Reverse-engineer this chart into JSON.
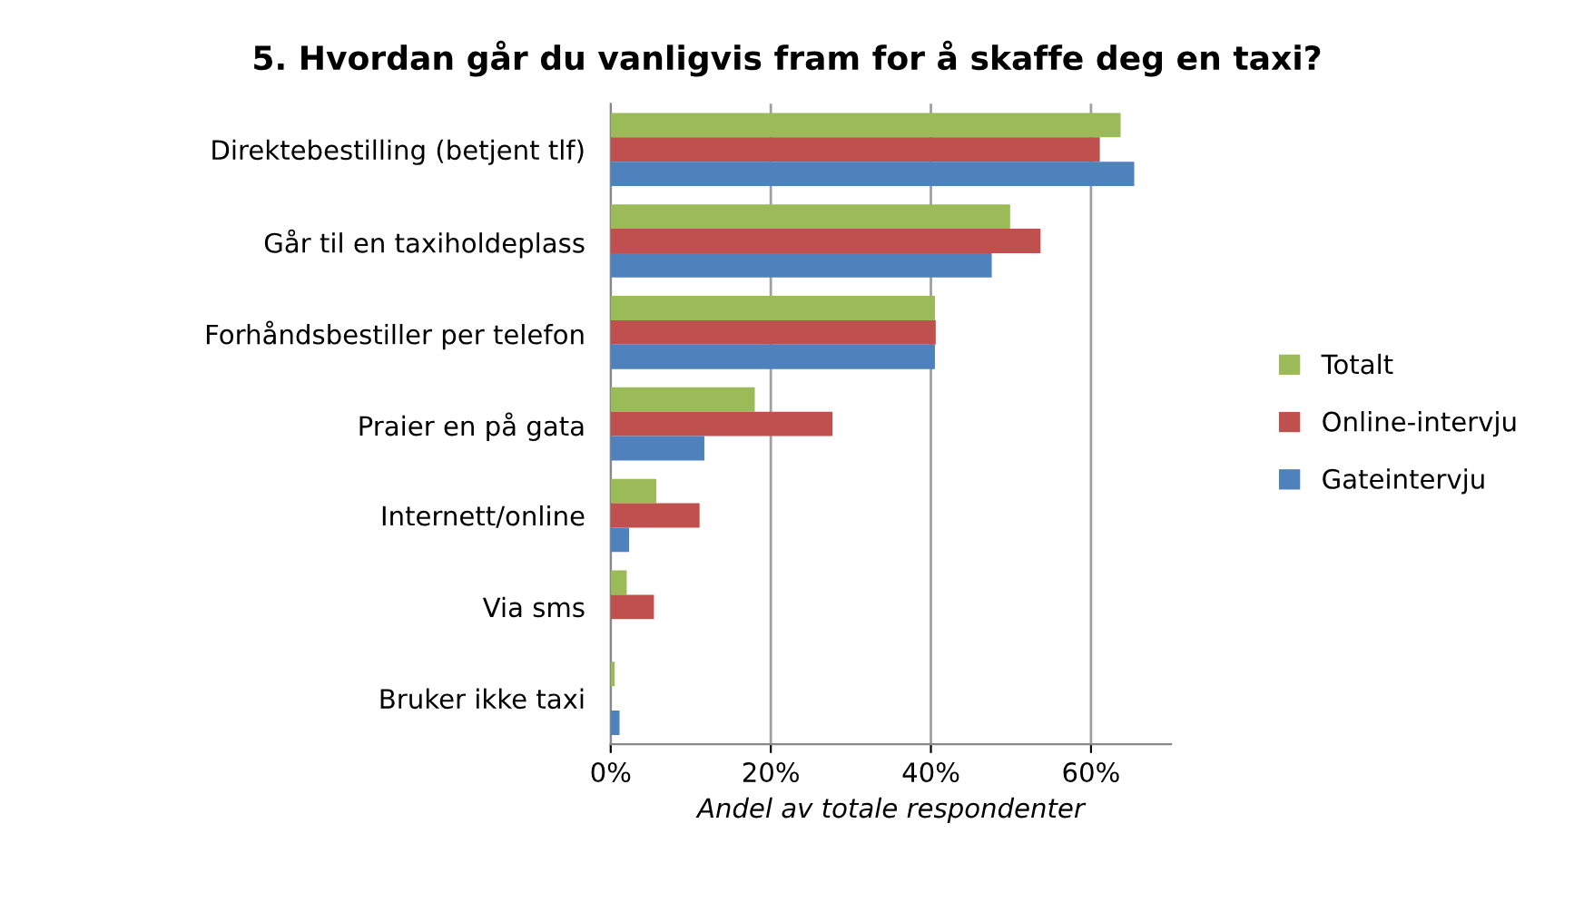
{
  "chart_data": {
    "type": "bar",
    "orientation": "horizontal",
    "title": "5. Hvordan går du vanligvis fram for å skaffe deg en taxi?",
    "xlabel": "Andel av totale respondenter",
    "categories": [
      "Direktebestilling (betjent tlf)",
      "Går til en taxiholdeplass",
      "Forhåndsbestiller per telefon",
      "Praier en på gata",
      "Internett/online",
      "Via sms",
      "Bruker ikke taxi"
    ],
    "series": [
      {
        "name": "Totalt",
        "color": "#9bbb59",
        "values": [
          63.7,
          49.9,
          40.5,
          18.0,
          5.7,
          2.0,
          0.5
        ]
      },
      {
        "name": "Online-intervju",
        "color": "#c0504d",
        "values": [
          61.1,
          53.7,
          40.6,
          27.7,
          11.1,
          5.4,
          0
        ]
      },
      {
        "name": "Gateintervju",
        "color": "#4f81bd",
        "values": [
          65.4,
          47.6,
          40.5,
          11.7,
          2.3,
          0,
          1.1
        ]
      }
    ],
    "xlim": [
      0,
      70
    ],
    "xticks": [
      {
        "value": 0,
        "label": "0%"
      },
      {
        "value": 20,
        "label": "20%"
      },
      {
        "value": 40,
        "label": "40%"
      },
      {
        "value": 60,
        "label": "60%"
      }
    ],
    "grid": "x",
    "legend": "right"
  }
}
